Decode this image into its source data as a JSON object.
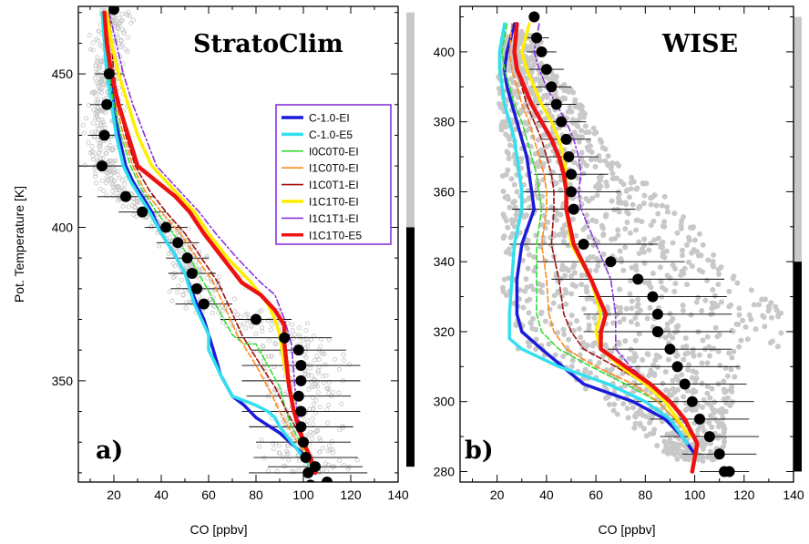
{
  "series_styles": [
    {
      "name": "C-1.0-EI",
      "color": "#1a1ad9",
      "width": 3.5,
      "dash": ""
    },
    {
      "name": "C-1.0-E5",
      "color": "#33e0f0",
      "width": 3.5,
      "dash": ""
    },
    {
      "name": "I0C0T0-EI",
      "color": "#33dd33",
      "width": 1.6,
      "dash": "6,3"
    },
    {
      "name": "I1C0T0-EI",
      "color": "#ff8c1a",
      "width": 1.6,
      "dash": "6,3"
    },
    {
      "name": "I1C0T1-EI",
      "color": "#a01010",
      "width": 1.6,
      "dash": "6,3"
    },
    {
      "name": "I1C1T0-EI",
      "color": "#ffee00",
      "width": 3.5,
      "dash": ""
    },
    {
      "name": "I1C1T1-EI",
      "color": "#8833dd",
      "width": 1.6,
      "dash": "7,3,2,3"
    },
    {
      "name": "I1C1T0-E5",
      "color": "#ee1111",
      "width": 4.5,
      "dash": ""
    }
  ],
  "chart_data": [
    {
      "type": "line",
      "title": "StratoClim",
      "panel_label": "a)",
      "xlabel": "CO [ppbv]",
      "ylabel": "Pot. Temperature [K]",
      "xlim": [
        5,
        140
      ],
      "ylim": [
        317,
        472
      ],
      "xticks": [
        20,
        40,
        60,
        80,
        100,
        120,
        140
      ],
      "yticks": [
        350,
        400,
        450
      ],
      "legend": {
        "placement": "top-right",
        "entries": [
          "C-1.0-EI",
          "C-1.0-E5",
          "I0C0T0-EI",
          "I1C0T0-EI",
          "I1C0T1-EI",
          "I1C1T0-EI",
          "I1C1T1-EI",
          "I1C1T0-E5"
        ]
      },
      "side_bar": {
        "gray_range": [
          400,
          470
        ],
        "black_range": [
          322,
          400
        ]
      },
      "series": [
        {
          "name": "C-1.0-EI",
          "x": [
            16,
            17,
            18,
            20,
            22,
            25,
            28,
            32,
            36,
            40,
            45,
            50,
            55,
            58,
            62,
            65,
            70,
            75,
            80,
            90,
            100,
            105
          ],
          "y": [
            470,
            460,
            450,
            440,
            430,
            420,
            415,
            410,
            405,
            398,
            392,
            385,
            375,
            370,
            360,
            352,
            345,
            342,
            338,
            333,
            326,
            320
          ]
        },
        {
          "name": "C-1.0-E5",
          "x": [
            15,
            16,
            17,
            19,
            21,
            24,
            27,
            31,
            35,
            40,
            45,
            50,
            54,
            57,
            60,
            60,
            62,
            65,
            70,
            80,
            85,
            88,
            90,
            95,
            105
          ],
          "y": [
            470,
            460,
            450,
            440,
            430,
            420,
            415,
            410,
            405,
            398,
            392,
            385,
            375,
            370,
            365,
            360,
            357,
            352,
            345,
            342,
            340,
            338,
            335,
            330,
            320
          ]
        },
        {
          "name": "I0C0T0-EI",
          "x": [
            16,
            17,
            18,
            20,
            23,
            27,
            32,
            38,
            45,
            52,
            58,
            65,
            70,
            75,
            80,
            85,
            90,
            92,
            95,
            100,
            105
          ],
          "y": [
            470,
            460,
            450,
            440,
            430,
            420,
            412,
            405,
            398,
            390,
            382,
            372,
            365,
            362,
            362,
            355,
            348,
            342,
            335,
            328,
            320
          ]
        },
        {
          "name": "I1C0T0-EI",
          "x": [
            17,
            18,
            19,
            21,
            24,
            28,
            33,
            40,
            48,
            55,
            62,
            68,
            72,
            76,
            80,
            85,
            90,
            95,
            100,
            105
          ],
          "y": [
            470,
            460,
            450,
            440,
            430,
            420,
            412,
            405,
            398,
            390,
            382,
            372,
            365,
            360,
            355,
            348,
            340,
            333,
            327,
            320
          ]
        },
        {
          "name": "I1C0T1-EI",
          "x": [
            18,
            19,
            20,
            22,
            25,
            29,
            35,
            42,
            50,
            57,
            64,
            70,
            74,
            78,
            82,
            88,
            93,
            98,
            102,
            105
          ],
          "y": [
            470,
            460,
            450,
            440,
            430,
            420,
            412,
            405,
            398,
            390,
            382,
            372,
            365,
            360,
            355,
            348,
            340,
            333,
            327,
            320
          ]
        },
        {
          "name": "I1C1T0-EI",
          "x": [
            17,
            19,
            22,
            26,
            30,
            36,
            42,
            48,
            54,
            60,
            68,
            78,
            85,
            88,
            90,
            92,
            94,
            96,
            100,
            104
          ],
          "y": [
            470,
            460,
            450,
            440,
            430,
            420,
            415,
            410,
            405,
            398,
            390,
            382,
            375,
            370,
            365,
            355,
            348,
            340,
            330,
            320
          ]
        },
        {
          "name": "I1C1T1-EI",
          "x": [
            18,
            21,
            24,
            28,
            33,
            38,
            44,
            50,
            56,
            63,
            72,
            82,
            88,
            92,
            95,
            96,
            97,
            100,
            104
          ],
          "y": [
            470,
            460,
            450,
            440,
            430,
            420,
            415,
            410,
            405,
            398,
            390,
            382,
            378,
            370,
            362,
            352,
            342,
            330,
            320
          ]
        },
        {
          "name": "I1C1T0-E5",
          "x": [
            16,
            17,
            19,
            22,
            26,
            30,
            38,
            46,
            52,
            58,
            66,
            74,
            82,
            88,
            92,
            92,
            93,
            94,
            96,
            100,
            103,
            105
          ],
          "y": [
            470,
            460,
            450,
            440,
            430,
            420,
            415,
            410,
            405,
            398,
            390,
            382,
            378,
            373,
            368,
            362,
            355,
            348,
            340,
            330,
            325,
            320
          ]
        }
      ],
      "points": {
        "x": [
          20,
          18,
          17,
          16,
          15,
          25,
          32,
          42,
          47,
          51,
          53,
          55,
          58,
          80,
          92,
          99,
          98,
          99,
          98,
          99,
          99,
          100,
          101,
          102,
          103,
          105,
          110
        ],
        "y": [
          471,
          450,
          440,
          430,
          420,
          410,
          405,
          400,
          395,
          390,
          385,
          380,
          375,
          370,
          364,
          355,
          360,
          350,
          345,
          340,
          335,
          330,
          325,
          320,
          316,
          322,
          317
        ],
        "xerr": [
          0,
          6,
          7,
          7,
          10,
          12,
          10,
          9,
          9,
          9,
          10,
          11,
          12,
          15,
          20,
          25,
          20,
          25,
          22,
          25,
          22,
          20,
          22,
          25,
          20,
          20,
          12
        ]
      }
    },
    {
      "type": "line",
      "title": "WISE",
      "panel_label": "b)",
      "xlabel": "CO [ppbv]",
      "ylabel": "",
      "xlim": [
        5,
        140
      ],
      "ylim": [
        277,
        413
      ],
      "xticks": [
        20,
        40,
        60,
        80,
        100,
        120,
        140
      ],
      "yticks": [
        280,
        300,
        320,
        340,
        360,
        380,
        400
      ],
      "side_bar": {
        "gray_range": [
          340,
          410
        ],
        "black_range": [
          280,
          340
        ]
      },
      "series": [
        {
          "name": "C-1.0-EI",
          "x": [
            27,
            24,
            23,
            24,
            26,
            28,
            30,
            32,
            33,
            34,
            35,
            30,
            28,
            28,
            30,
            38,
            55,
            75,
            88,
            95,
            100
          ],
          "y": [
            408,
            400,
            395,
            390,
            385,
            380,
            375,
            370,
            365,
            360,
            355,
            345,
            335,
            325,
            320,
            315,
            305,
            300,
            295,
            290,
            285
          ]
        },
        {
          "name": "C-1.0-E5",
          "x": [
            23,
            21,
            21,
            22,
            23,
            25,
            27,
            28,
            29,
            30,
            30,
            27,
            26,
            25,
            25,
            30,
            45,
            65,
            80,
            90,
            97
          ],
          "y": [
            408,
            400,
            395,
            390,
            385,
            380,
            375,
            370,
            365,
            360,
            355,
            345,
            335,
            325,
            318,
            315,
            310,
            305,
            300,
            295,
            288
          ]
        },
        {
          "name": "I0C0T0-EI",
          "x": [
            24,
            22,
            23,
            25,
            27,
            30,
            32,
            34,
            36,
            37,
            38,
            36,
            36,
            36,
            38,
            45,
            58,
            72,
            85,
            92,
            98
          ],
          "y": [
            408,
            400,
            395,
            390,
            385,
            380,
            375,
            370,
            365,
            360,
            355,
            345,
            335,
            325,
            320,
            315,
            310,
            305,
            300,
            295,
            290
          ]
        },
        {
          "name": "I1C0T0-EI",
          "x": [
            26,
            25,
            26,
            28,
            30,
            33,
            35,
            37,
            39,
            40,
            40,
            38,
            40,
            41,
            43,
            48,
            60,
            75,
            85,
            92,
            98
          ],
          "y": [
            408,
            400,
            395,
            390,
            385,
            380,
            375,
            370,
            365,
            360,
            355,
            345,
            335,
            325,
            320,
            315,
            310,
            305,
            300,
            295,
            290
          ]
        },
        {
          "name": "I1C0T1-EI",
          "x": [
            28,
            27,
            28,
            30,
            32,
            35,
            38,
            40,
            42,
            43,
            43,
            42,
            45,
            47,
            50,
            55,
            68,
            80,
            88,
            93,
            98
          ],
          "y": [
            408,
            400,
            395,
            390,
            385,
            380,
            375,
            370,
            365,
            360,
            355,
            345,
            335,
            325,
            320,
            315,
            310,
            305,
            300,
            295,
            290
          ]
        },
        {
          "name": "I1C1T0-EI",
          "x": [
            33,
            30,
            32,
            35,
            38,
            42,
            45,
            47,
            48,
            48,
            48,
            50,
            58,
            62,
            60,
            62,
            70,
            80,
            88,
            93,
            98
          ],
          "y": [
            408,
            400,
            395,
            390,
            385,
            380,
            375,
            370,
            365,
            360,
            355,
            345,
            335,
            325,
            320,
            315,
            310,
            305,
            300,
            295,
            290
          ]
        },
        {
          "name": "I1C1T1-EI",
          "x": [
            37,
            35,
            37,
            40,
            44,
            48,
            51,
            53,
            54,
            53,
            54,
            60,
            66,
            68,
            68,
            68,
            74,
            82,
            90,
            95,
            99
          ],
          "y": [
            408,
            400,
            395,
            390,
            385,
            380,
            375,
            370,
            365,
            360,
            355,
            345,
            335,
            325,
            320,
            315,
            310,
            305,
            300,
            295,
            290
          ]
        },
        {
          "name": "I1C1T0-E5",
          "x": [
            28,
            27,
            28,
            31,
            34,
            38,
            42,
            45,
            47,
            48,
            48,
            51,
            58,
            64,
            62,
            62,
            72,
            82,
            90,
            96,
            101,
            99
          ],
          "y": [
            408,
            400,
            395,
            390,
            385,
            380,
            375,
            370,
            365,
            360,
            355,
            345,
            335,
            325,
            320,
            315,
            310,
            305,
            300,
            295,
            288,
            280
          ]
        }
      ],
      "points": {
        "x": [
          35,
          36,
          38,
          40,
          42,
          44,
          46,
          48,
          49,
          50,
          50,
          51,
          55,
          66,
          77,
          83,
          85,
          85,
          85,
          90,
          93,
          96,
          99,
          102,
          106,
          110,
          112,
          114
        ],
        "y": [
          410,
          404,
          400,
          395,
          390,
          385,
          380,
          375,
          370,
          365,
          360,
          355,
          345,
          340,
          335,
          330,
          325,
          320,
          320,
          315,
          310,
          305,
          300,
          295,
          290,
          285,
          280,
          280
        ],
        "xerr": [
          0,
          5,
          6,
          7,
          8,
          8,
          10,
          10,
          12,
          15,
          20,
          25,
          30,
          30,
          35,
          30,
          30,
          30,
          25,
          25,
          25,
          25,
          25,
          20,
          20,
          15,
          10,
          0
        ]
      }
    }
  ]
}
